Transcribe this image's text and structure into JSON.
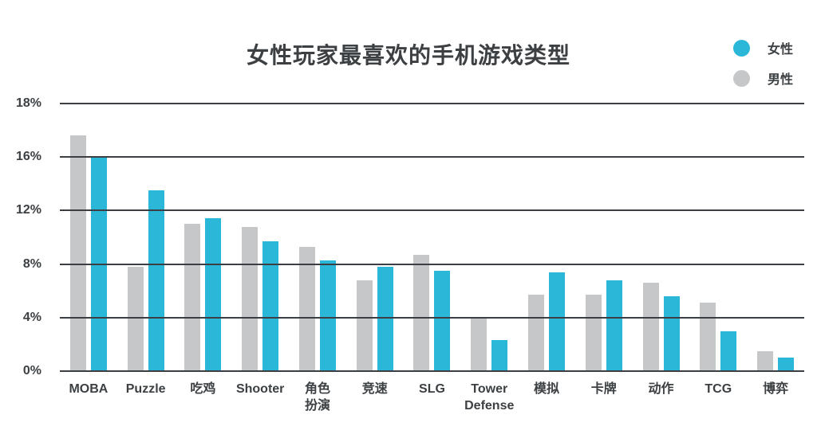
{
  "title": "女性玩家最喜欢的手机游戏类型",
  "legend": {
    "items": [
      {
        "label": "女性",
        "color": "#2bb8d8"
      },
      {
        "label": "男性",
        "color": "#c5c7c9"
      }
    ]
  },
  "colors": {
    "female_bar": "#2bb8d8",
    "male_bar": "#c5c7c9",
    "gridline": "#3b3f43",
    "text": "#3c4043",
    "background": "#ffffff"
  },
  "chart_data": {
    "type": "bar",
    "title": "女性玩家最喜欢的手机游戏类型",
    "xlabel": "",
    "ylabel": "",
    "categories": [
      "MOBA",
      "Puzzle",
      "吃鸡",
      "Shooter",
      "角色扮演",
      "竞速",
      "SLG",
      "Tower Defense",
      "模拟",
      "卡牌",
      "动作",
      "TCG",
      "博弈"
    ],
    "categories_display": [
      [
        "MOBA"
      ],
      [
        "Puzzle"
      ],
      [
        "吃鸡"
      ],
      [
        "Shooter"
      ],
      [
        "角色",
        "扮演"
      ],
      [
        "竞速"
      ],
      [
        "SLG"
      ],
      [
        "Tower",
        "Defense"
      ],
      [
        "模拟"
      ],
      [
        "卡牌"
      ],
      [
        "动作"
      ],
      [
        "TCG"
      ],
      [
        "博弈"
      ]
    ],
    "series": [
      {
        "name": "男性",
        "color": "#c5c7c9",
        "values": [
          16.8,
          7.8,
          11.0,
          10.8,
          9.3,
          6.8,
          8.7,
          4.0,
          5.7,
          5.7,
          6.6,
          5.1,
          1.5
        ]
      },
      {
        "name": "女性",
        "color": "#2bb8d8",
        "values": [
          16.0,
          13.5,
          11.4,
          9.7,
          8.3,
          7.8,
          7.5,
          2.3,
          7.4,
          6.8,
          5.6,
          3.0,
          1.0
        ]
      }
    ],
    "yticks_labels": [
      "0%",
      "4%",
      "8%",
      "12%",
      "16%",
      "18%"
    ],
    "yticks_values": [
      0,
      4,
      8,
      12,
      16,
      18
    ],
    "ylim": [
      0,
      18
    ],
    "grid": true,
    "gridlines_equally_spaced": true,
    "axis_note": "All six gridlines are equally spaced even though the 16%-18% interval covers only 2 units",
    "legend_position": "top-right"
  }
}
